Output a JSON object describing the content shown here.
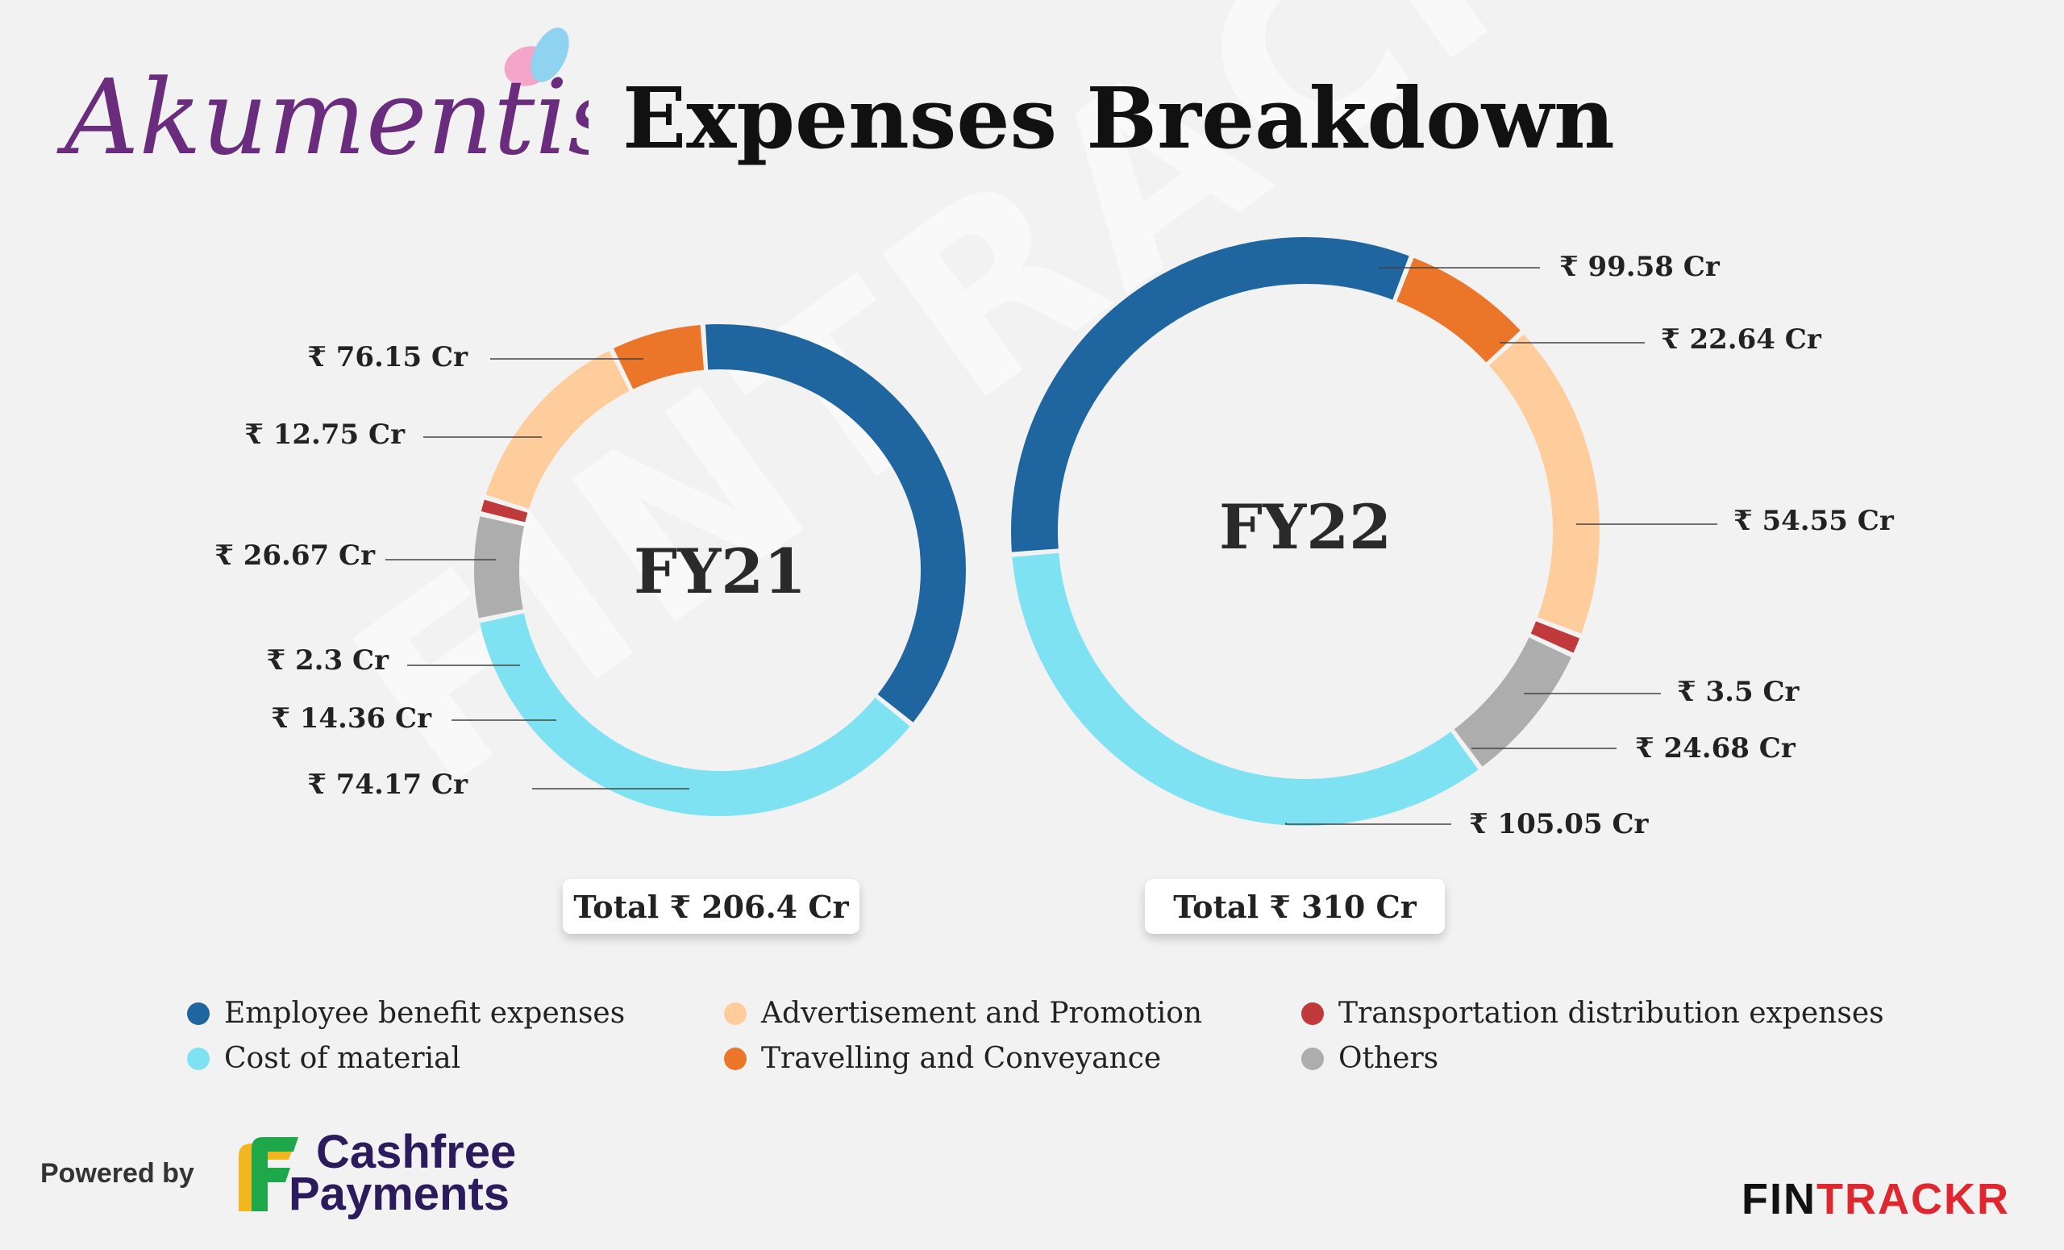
{
  "brand": {
    "company": "Akumentis"
  },
  "header": {
    "title": "Expenses Breakdown"
  },
  "watermark_text": "FINTRACKR",
  "chart_data": [
    {
      "type": "pie",
      "title": "FY21",
      "unit": "₹ Cr",
      "categories": [
        "Employee benefit expenses",
        "Cost of material",
        "Others",
        "Transportation distribution expenses",
        "Advertisement and Promotion",
        "Travelling and Conveyance"
      ],
      "values": [
        76.15,
        74.17,
        14.36,
        2.3,
        26.67,
        12.75
      ],
      "value_labels": [
        "₹ 76.15 Cr",
        "₹ 74.17 Cr",
        "₹ 14.36 Cr",
        "₹ 2.3 Cr",
        "₹ 26.67 Cr",
        "₹ 12.75 Cr"
      ],
      "colors": [
        "#1f65a0",
        "#7ee2f3",
        "#adadad",
        "#c0393b",
        "#ffcc9b",
        "#eb7528"
      ],
      "total_label": "Total ₹ 206.4 Cr"
    },
    {
      "type": "pie",
      "title": "FY22",
      "unit": "₹ Cr",
      "categories": [
        "Employee benefit expenses",
        "Travelling and Conveyance",
        "Advertisement and Promotion",
        "Transportation distribution expenses",
        "Others",
        "Cost of material"
      ],
      "values": [
        99.58,
        22.64,
        54.55,
        3.5,
        24.68,
        105.05
      ],
      "value_labels": [
        "₹ 99.58 Cr",
        "₹ 22.64 Cr",
        "₹ 54.55 Cr",
        "₹ 3.5 Cr",
        "₹ 24.68 Cr",
        "₹ 105.05 Cr"
      ],
      "colors": [
        "#1f65a0",
        "#eb7528",
        "#ffcc9b",
        "#c0393b",
        "#adadad",
        "#7ee2f3"
      ],
      "total_label": "Total ₹ 310 Cr"
    }
  ],
  "legend": [
    {
      "label": "Employee benefit expenses",
      "color": "#1f65a0"
    },
    {
      "label": "Cost of material",
      "color": "#7ee2f3"
    },
    {
      "label": "Advertisement and Promotion",
      "color": "#ffcc9b"
    },
    {
      "label": "Travelling and Conveyance",
      "color": "#eb7528"
    },
    {
      "label": "Transportation distribution expenses",
      "color": "#c0393b"
    },
    {
      "label": "Others",
      "color": "#adadad"
    }
  ],
  "footer": {
    "powered_by": "Powered by",
    "partner_line1": "Cashfree",
    "partner_line2": "Payments",
    "brand_part1": "FIN",
    "brand_part2": "TRACKR"
  }
}
